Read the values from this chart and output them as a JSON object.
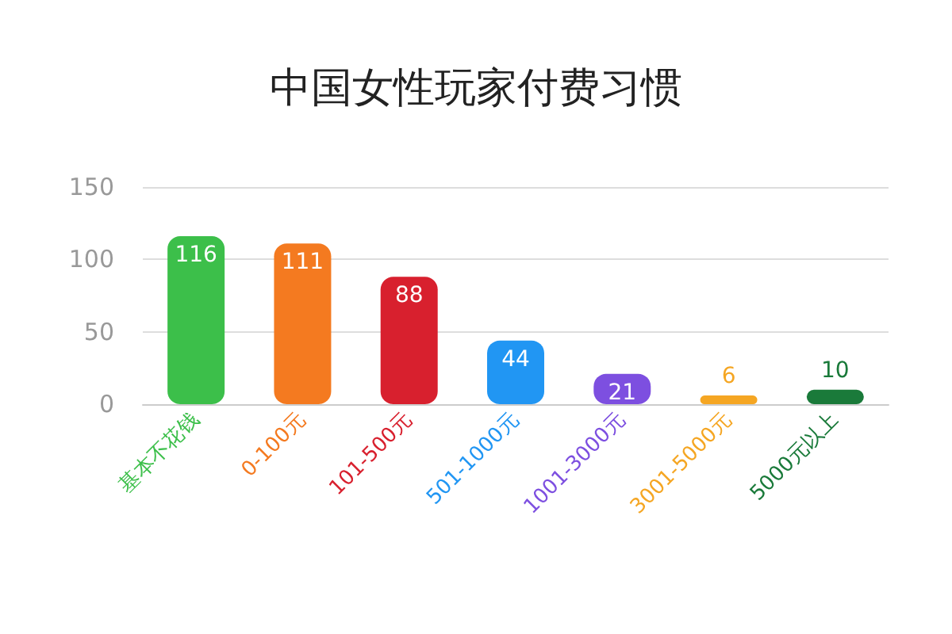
{
  "chart_data": {
    "type": "bar",
    "title": "中国女性玩家付费习惯",
    "categories": [
      "基本不花钱",
      "0-100元",
      "101-500元",
      "501-1000元",
      "1001-3000元",
      "3001-5000元",
      "5000元以上"
    ],
    "values": [
      116,
      111,
      88,
      44,
      21,
      6,
      10
    ],
    "colors": [
      "#3cbf4a",
      "#f47a20",
      "#d8202e",
      "#2196f3",
      "#7d4fe0",
      "#f5a623",
      "#1a7a3a"
    ],
    "ylim": [
      0,
      150
    ],
    "yticks": [
      0,
      50,
      100,
      150
    ],
    "grid": "y",
    "data_labels": true
  }
}
